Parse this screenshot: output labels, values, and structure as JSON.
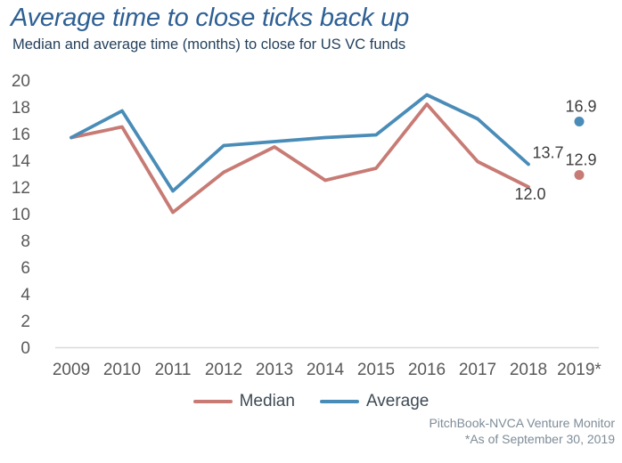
{
  "page": {
    "title": "Average time to close ticks back up",
    "subtitle": "Median and average time (months) to close for US VC funds",
    "footer": {
      "source": "PitchBook-NVCA Venture Monitor",
      "note": "*As of September 30, 2019"
    }
  },
  "colors": {
    "median": "#c77b74",
    "average": "#4a8cb8",
    "title_text": "#2e6094",
    "subtitle_text": "#24405c",
    "axis_text": "#595959",
    "axis_line": "#d9d9d9",
    "data_label": "#3d3d3d",
    "legend_text": "#3e4a55",
    "footer_text": "#7e8c98"
  },
  "chart_data": {
    "type": "line",
    "title": "Average time to close ticks back up",
    "subtitle": "Median and average time (months) to close for US VC funds",
    "categories": [
      "2009",
      "2010",
      "2011",
      "2012",
      "2013",
      "2014",
      "2015",
      "2016",
      "2017",
      "2018",
      "2019*"
    ],
    "series": [
      {
        "name": "Median",
        "color_key": "median",
        "values": [
          15.7,
          16.5,
          10.1,
          13.1,
          15.0,
          12.5,
          13.4,
          18.2,
          13.9,
          12.0,
          12.9
        ],
        "last_point_style": "dot"
      },
      {
        "name": "Average",
        "color_key": "average",
        "values": [
          15.7,
          17.7,
          11.7,
          15.1,
          15.4,
          15.7,
          15.9,
          18.9,
          17.1,
          13.7,
          16.9
        ],
        "last_point_style": "dot"
      }
    ],
    "annotations": [
      {
        "series": "Average",
        "category": "2018",
        "label": "13.7",
        "placement": "above-right"
      },
      {
        "series": "Median",
        "category": "2018",
        "label": "12.0",
        "placement": "below"
      },
      {
        "series": "Average",
        "category": "2019*",
        "label": "16.9",
        "placement": "above"
      },
      {
        "series": "Median",
        "category": "2019*",
        "label": "12.9",
        "placement": "above"
      }
    ],
    "ylim": [
      0,
      20
    ],
    "ytick_step": 2,
    "grid": false,
    "legend_position": "bottom-center"
  }
}
